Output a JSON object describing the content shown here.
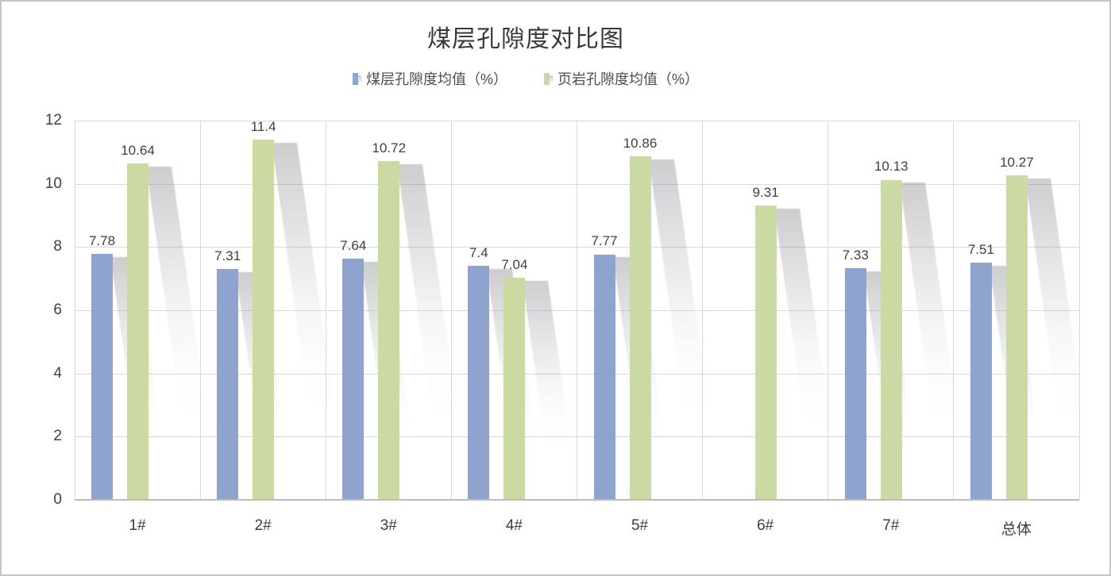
{
  "window": {
    "background": "#ffffff",
    "border_color": "#c6c6c8"
  },
  "chart_data": {
    "type": "bar",
    "title": "煤层孔隙度对比图",
    "categories": [
      "1#",
      "2#",
      "3#",
      "4#",
      "5#",
      "6#",
      "7#",
      "总体"
    ],
    "series": [
      {
        "name": "煤层孔隙度均值（%）",
        "color": "#8ea4cf",
        "values": [
          7.78,
          7.31,
          7.64,
          7.4,
          7.77,
          null,
          7.33,
          7.51
        ],
        "labels": [
          "7.78",
          "7.31",
          "7.64",
          "7.4",
          "7.77",
          null,
          "7.33",
          "7.51"
        ]
      },
      {
        "name": "页岩孔隙度均值（%）",
        "color": "#cbdaa3",
        "values": [
          10.64,
          11.4,
          10.72,
          7.04,
          10.86,
          9.31,
          10.13,
          10.27
        ],
        "labels": [
          "10.64",
          "11.4",
          "10.72",
          "7.04",
          "10.86",
          "9.31",
          "10.13",
          "10.27"
        ]
      }
    ],
    "y_axis": {
      "min": 0,
      "max": 12,
      "step": 2,
      "ticks": [
        "0",
        "2",
        "4",
        "6",
        "8",
        "10",
        "12"
      ]
    },
    "x_axis": {
      "label": ""
    },
    "grid": true,
    "legend_position": "top",
    "bar_effect": "perspective-shadow-lower-right",
    "colors": {
      "gridline": "#d8d8d8",
      "axis_line": "#bcbcbc",
      "label_text": "#404040",
      "title_text": "#383838",
      "legend_text": "#4d4d4d"
    }
  }
}
